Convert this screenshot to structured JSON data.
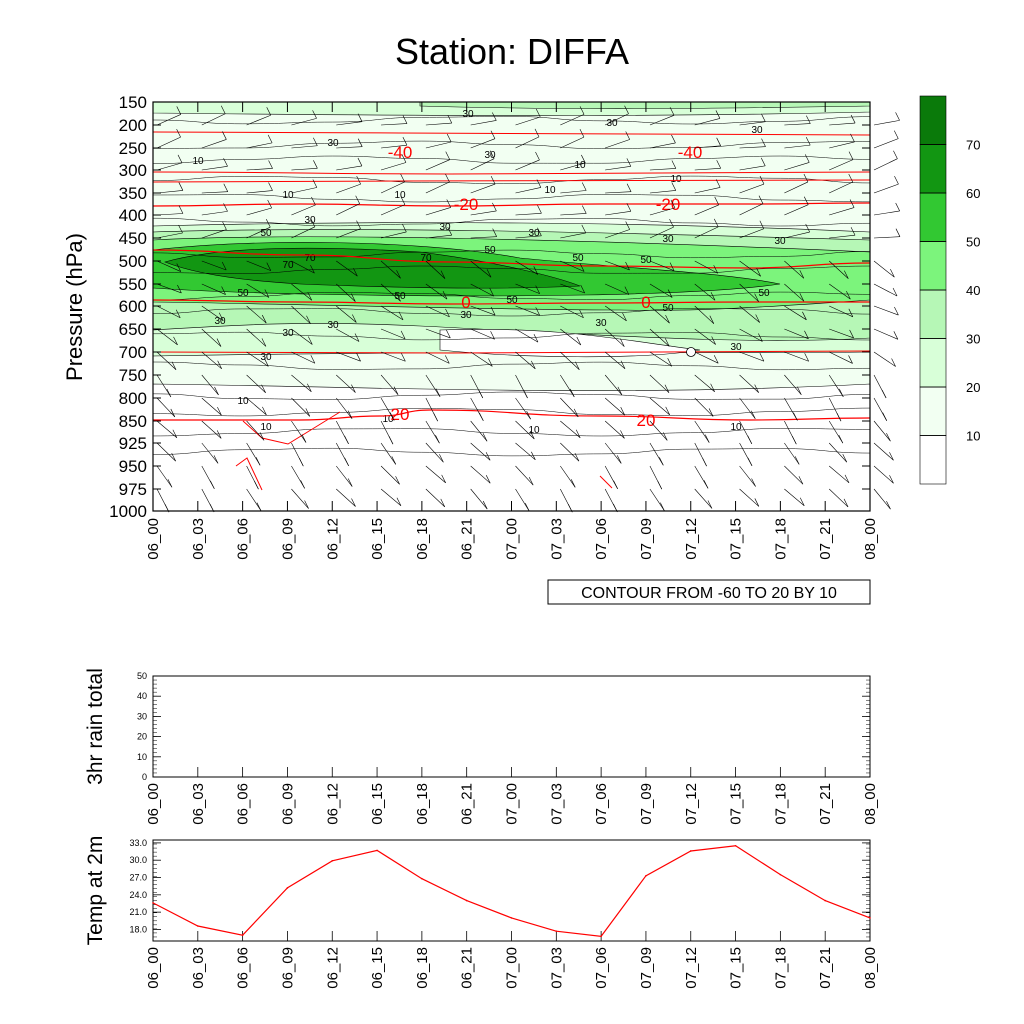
{
  "title": "Station: DIFFA",
  "time_labels": [
    "06_00",
    "06_03",
    "06_06",
    "06_09",
    "06_12",
    "06_15",
    "06_18",
    "06_21",
    "07_00",
    "07_03",
    "07_06",
    "07_09",
    "07_12",
    "07_15",
    "07_18",
    "07_21",
    "08_00"
  ],
  "chart_data": [
    {
      "type": "heatmap",
      "name": "skewt-time-section",
      "ylabel": "Pressure (hPa)",
      "pressure_levels": [
        "150",
        "200",
        "250",
        "300",
        "350",
        "400",
        "450",
        "500",
        "550",
        "600",
        "650",
        "700",
        "750",
        "800",
        "850",
        "925",
        "950",
        "975",
        "1000"
      ],
      "colorbar": {
        "levels": [
          "10",
          "20",
          "30",
          "40",
          "50",
          "60",
          "70"
        ],
        "colors": [
          "#ffffff",
          "#f2fff2",
          "#d8ffd8",
          "#b6f7b6",
          "#7cf47c",
          "#32c832",
          "#129612",
          "#0a7a0a"
        ]
      },
      "temperature_contours": [
        {
          "label": "-40",
          "level": 263
        },
        {
          "label": "-20",
          "level": 375
        },
        {
          "label": "0",
          "level": 590
        },
        {
          "label": "20",
          "level": 845
        }
      ],
      "humidity_labels": [
        "10",
        "30",
        "50",
        "70"
      ],
      "annotation": "CONTOUR FROM -60 TO 20 BY 10"
    },
    {
      "type": "bar",
      "name": "rain-panel",
      "ylabel": "3hr rain total",
      "ylim": [
        0,
        50
      ],
      "yticks": [
        "0",
        "10",
        "20",
        "30",
        "40",
        "50"
      ],
      "values": [
        0,
        0,
        0,
        0,
        0,
        0,
        0,
        0,
        0,
        0,
        0,
        0,
        0,
        0,
        0,
        0,
        0
      ]
    },
    {
      "type": "line",
      "name": "temp-panel",
      "ylabel": "Temp at 2m",
      "ylim": [
        16.0,
        33.5
      ],
      "yticks": [
        "18.0",
        "21.0",
        "24.0",
        "27.0",
        "30.0",
        "33.0"
      ],
      "values": [
        22.6,
        18.6,
        17.0,
        25.2,
        29.9,
        31.7,
        26.8,
        23.0,
        20.0,
        17.7,
        16.8,
        27.3,
        31.6,
        32.5,
        27.5,
        23.0,
        20.0
      ],
      "color": "#ff0000"
    }
  ]
}
